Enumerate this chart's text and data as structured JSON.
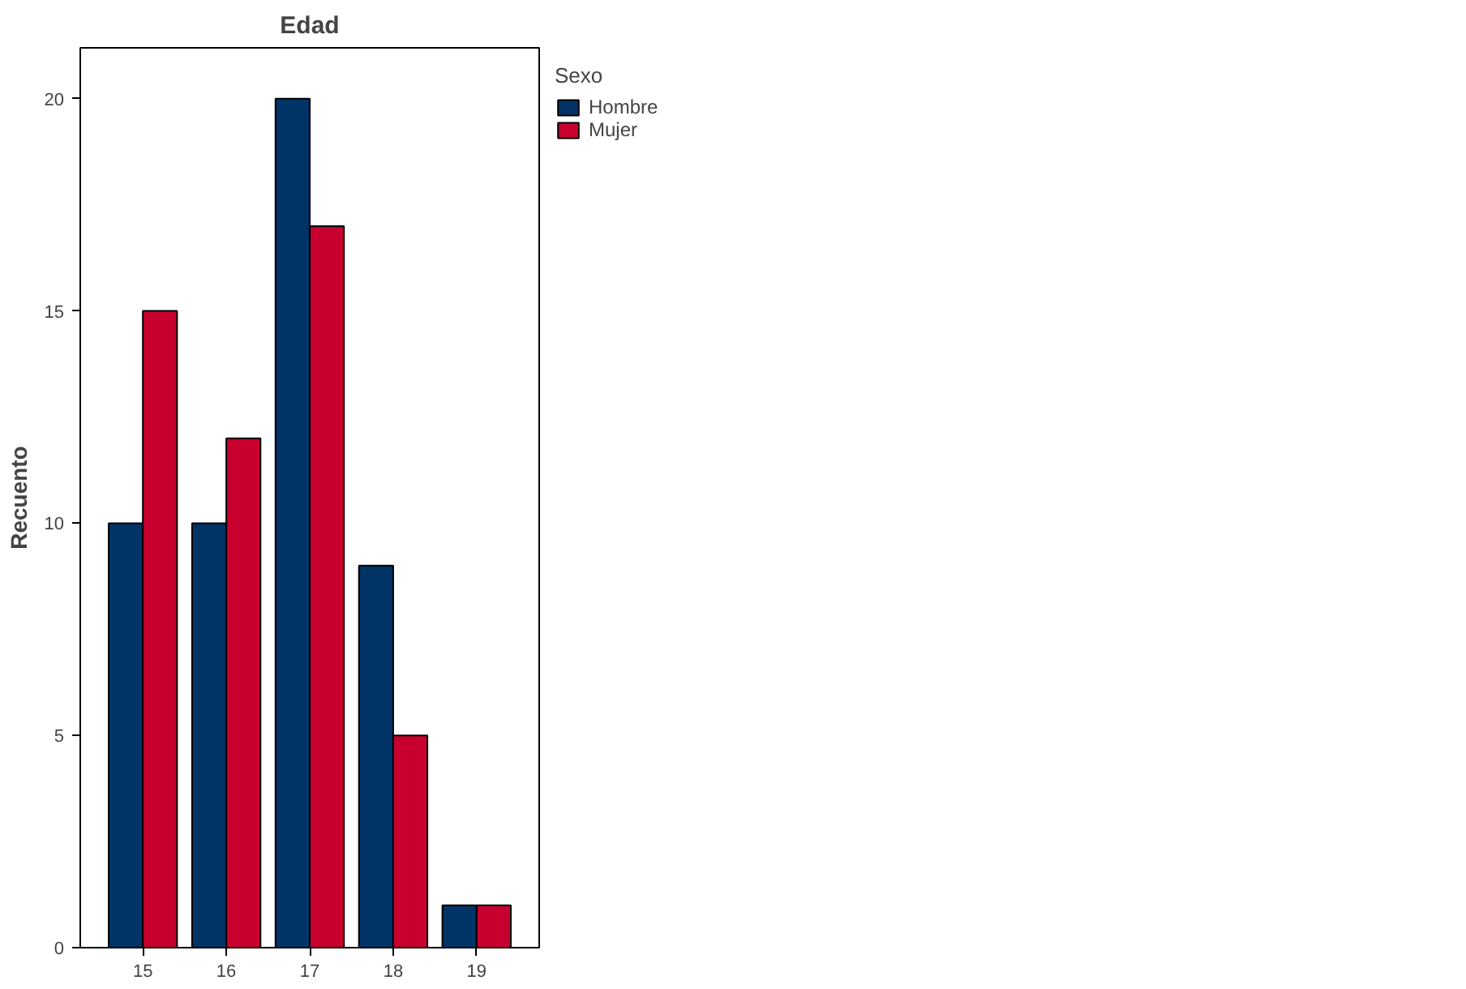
{
  "chart_data": {
    "type": "bar",
    "title": "Edad",
    "ylabel": "Recuento",
    "legend_title": "Sexo",
    "categories": [
      "15",
      "16",
      "17",
      "18",
      "19"
    ],
    "series": [
      {
        "name": "Hombre",
        "color": "#003366",
        "values": [
          10,
          10,
          20,
          9,
          1
        ]
      },
      {
        "name": "Mujer",
        "color": "#c8002f",
        "values": [
          15,
          12,
          17,
          5,
          1
        ]
      }
    ],
    "ylim": [
      0,
      21.2
    ],
    "yticks": [
      0,
      5,
      10,
      15,
      20
    ],
    "grid": false,
    "legend": "right"
  }
}
